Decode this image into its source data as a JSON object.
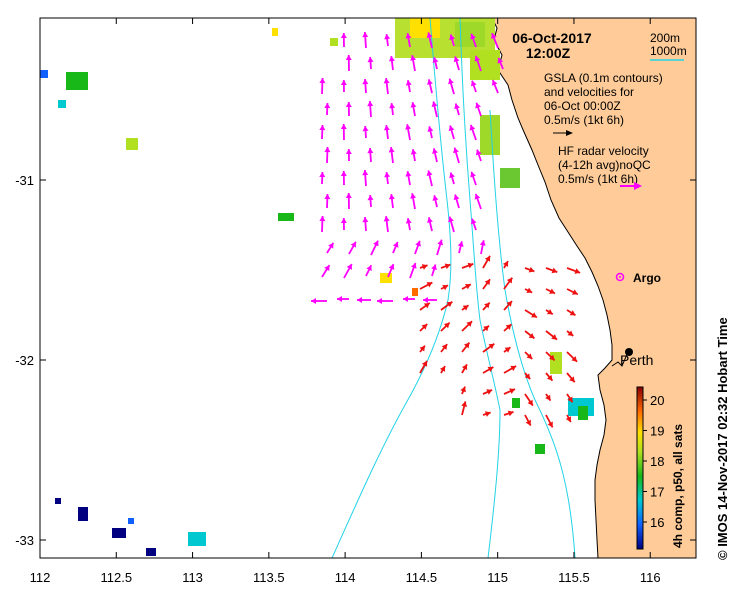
{
  "map": {
    "date_label": "06-Oct-2017",
    "time_label": "12:00Z",
    "contour_legend": [
      "200m",
      "1000m"
    ],
    "gsla_legend": [
      "GSLA (0.1m contours)",
      "and velocities for",
      "06-Oct 00:00Z",
      "0.5m/s (1kt 6h)"
    ],
    "hf_legend": [
      "HF radar velocity",
      "(4-12h avg)noQC",
      "0.5m/s (1kt 6h)"
    ],
    "argo_label": "Argo",
    "city_label": "Perth",
    "colorbar_label": "4h comp, p50, all sats",
    "colorbar_ticks": [
      "16",
      "17",
      "18",
      "19",
      "20"
    ],
    "side_label": "© IMOS 14-Nov-2017 02:32 Hobart Time",
    "colors": {
      "land": "#ffcc99",
      "hf_arrow": "#ff00ff",
      "gsla_arrow": "#ee1111",
      "contour": "#22d3e6"
    }
  },
  "axes": {
    "xlim": [
      112,
      116.3
    ],
    "ylim": [
      -33.1,
      -30.1
    ],
    "x_ticks": [
      "112",
      "112.5",
      "113",
      "113.5",
      "114",
      "114.5",
      "115",
      "115.5",
      "116"
    ],
    "y_ticks": [
      "-31",
      "-32",
      "-33"
    ]
  }
}
